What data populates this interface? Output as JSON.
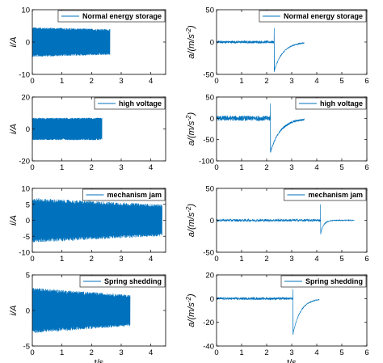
{
  "figure": {
    "x_axis_label": "t/s"
  },
  "colors": {
    "signal": "#0072BD",
    "axes": "#000000",
    "background": "#ffffff"
  },
  "chart_data": [
    {
      "type": "line",
      "panel": "current-normal-energy-storage",
      "legend": "Normal energy storage",
      "legend_position": "top-right",
      "ylabel": "i/A",
      "xlabel": "",
      "xlim": [
        0,
        4.5
      ],
      "ylim": [
        -10,
        10
      ],
      "xticks": [
        0,
        1,
        2,
        3,
        4
      ],
      "yticks": [
        -10,
        0,
        10
      ],
      "xtick_labels": [
        "0",
        "1",
        "2",
        "3",
        "4"
      ],
      "ytick_labels": [
        "-10",
        "0",
        "10"
      ],
      "signal": {
        "shape": "oscillation",
        "t_start": 0,
        "t_end": 2.62,
        "amplitude_start": 4.6,
        "amplitude_end": 4.0
      }
    },
    {
      "type": "line",
      "panel": "acceleration-normal-energy-storage",
      "legend": "Normal energy storage",
      "legend_position": "top-right",
      "ylabel": "a/(m/s^-2)",
      "xlabel": "",
      "xlim": [
        0,
        6
      ],
      "ylim": [
        -50,
        50
      ],
      "xticks": [
        0,
        1,
        2,
        3,
        4,
        5,
        6
      ],
      "yticks": [
        -50,
        0,
        50
      ],
      "xtick_labels": [
        "0",
        "1",
        "2",
        "3",
        "4",
        "5",
        "6"
      ],
      "ytick_labels": [
        "-50",
        "0",
        "50"
      ],
      "signal": {
        "shape": "impulse",
        "t_start": 0,
        "t_end": 3.5,
        "noise_amplitude": 2,
        "impact_time": 2.3,
        "impact_peak": 22,
        "impact_trough": -45,
        "decay_time": 0.35
      }
    },
    {
      "type": "line",
      "panel": "current-high-voltage",
      "legend": "high voltage",
      "legend_position": "top-right",
      "ylabel": "i/A",
      "xlabel": "",
      "xlim": [
        0,
        4.5
      ],
      "ylim": [
        -20,
        20
      ],
      "xticks": [
        0,
        1,
        2,
        3,
        4
      ],
      "yticks": [
        -20,
        0,
        20
      ],
      "xtick_labels": [
        "0",
        "1",
        "2",
        "3",
        "4"
      ],
      "ytick_labels": [
        "-20",
        "0",
        "20"
      ],
      "signal": {
        "shape": "oscillation",
        "t_start": 0,
        "t_end": 2.35,
        "amplitude_start": 7,
        "amplitude_end": 7
      }
    },
    {
      "type": "line",
      "panel": "acceleration-high-voltage",
      "legend": "high voltage",
      "legend_position": "top-right",
      "ylabel": "a/(m/s^-2)",
      "xlabel": "",
      "xlim": [
        0,
        6
      ],
      "ylim": [
        -100,
        50
      ],
      "xticks": [
        0,
        1,
        2,
        3,
        4,
        5,
        6
      ],
      "yticks": [
        -100,
        -50,
        0,
        50
      ],
      "xtick_labels": [
        "0",
        "1",
        "2",
        "3",
        "4",
        "5",
        "6"
      ],
      "ytick_labels": [
        "-100",
        "-50",
        "0",
        "50"
      ],
      "signal": {
        "shape": "impulse",
        "t_start": 0,
        "t_end": 3.5,
        "noise_amplitude": 6,
        "impact_time": 2.15,
        "impact_peak": 35,
        "impact_trough": -80,
        "decay_time": 0.4
      }
    },
    {
      "type": "line",
      "panel": "current-mechanism-jam",
      "legend": "mechanism jam",
      "legend_position": "top-right",
      "ylabel": "i/A",
      "xlabel": "",
      "xlim": [
        0,
        4.5
      ],
      "ylim": [
        -10,
        10
      ],
      "xticks": [
        0,
        1,
        2,
        3,
        4
      ],
      "yticks": [
        -10,
        -5,
        0,
        5,
        10
      ],
      "xtick_labels": [
        "0",
        "1",
        "2",
        "3",
        "4"
      ],
      "ytick_labels": [
        "-10",
        "-5",
        "0",
        "5",
        "10"
      ],
      "signal": {
        "shape": "oscillation",
        "t_start": 0,
        "t_end": 4.38,
        "amplitude_start": 7,
        "amplitude_end": 5
      }
    },
    {
      "type": "line",
      "panel": "acceleration-mechanism-jam",
      "legend": "mechanism jam",
      "legend_position": "top-right",
      "ylabel": "a/(m/s^-2)",
      "xlabel": "",
      "xlim": [
        0,
        6
      ],
      "ylim": [
        -50,
        50
      ],
      "xticks": [
        0,
        1,
        2,
        3,
        4,
        5,
        6
      ],
      "yticks": [
        -50,
        0,
        50
      ],
      "xtick_labels": [
        "0",
        "1",
        "2",
        "3",
        "4",
        "5",
        "6"
      ],
      "ytick_labels": [
        "-50",
        "0",
        "50"
      ],
      "signal": {
        "shape": "impulse",
        "t_start": 0,
        "t_end": 5.5,
        "noise_amplitude": 2,
        "impact_time": 4.15,
        "impact_peak": 25,
        "impact_trough": -22,
        "decay_time": 0.12
      }
    },
    {
      "type": "line",
      "panel": "current-spring-shedding",
      "legend": "Spring shedding",
      "legend_position": "top-right",
      "ylabel": "i/A",
      "xlabel": "t/s",
      "xlim": [
        0,
        4.5
      ],
      "ylim": [
        -5,
        5
      ],
      "xticks": [
        0,
        1,
        2,
        3,
        4
      ],
      "yticks": [
        -5,
        0,
        5
      ],
      "xtick_labels": [
        "0",
        "1",
        "2",
        "3",
        "4"
      ],
      "ytick_labels": [
        "-5",
        "0",
        "5"
      ],
      "signal": {
        "shape": "oscillation",
        "t_start": 0,
        "t_end": 3.3,
        "amplitude_start": 3.2,
        "amplitude_end": 2.2
      }
    },
    {
      "type": "line",
      "panel": "acceleration-spring-shedding",
      "legend": "Spring shedding",
      "legend_position": "top-right",
      "ylabel": "a/(m/s^-2)",
      "xlabel": "t/s",
      "xlim": [
        0,
        6
      ],
      "ylim": [
        -40,
        20
      ],
      "xticks": [
        0,
        1,
        2,
        3,
        4,
        5,
        6
      ],
      "yticks": [
        -40,
        -20,
        0,
        20
      ],
      "xtick_labels": [
        "0",
        "1",
        "2",
        "3",
        "4",
        "5",
        "6"
      ],
      "ytick_labels": [
        "-40",
        "-20",
        "0",
        "20"
      ],
      "signal": {
        "shape": "impulse",
        "t_start": 0,
        "t_end": 4.1,
        "noise_amplitude": 1,
        "impact_time": 3.05,
        "impact_peak": 8,
        "impact_trough": -30,
        "decay_time": 0.3
      }
    }
  ]
}
